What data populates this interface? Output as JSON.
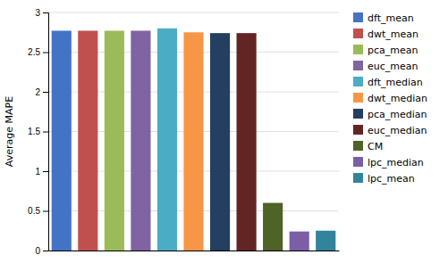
{
  "chart_data": {
    "type": "bar",
    "categories": [
      "dft_mean",
      "dwt_mean",
      "pca_mean",
      "euc_mean",
      "dft_median",
      "dwt_median",
      "pca_median",
      "euc_median",
      "CM",
      "lpc_median",
      "lpc_mean"
    ],
    "values": [
      2.77,
      2.77,
      2.77,
      2.77,
      2.8,
      2.75,
      2.74,
      2.74,
      0.6,
      0.24,
      0.25
    ],
    "colors": [
      "#4472C4",
      "#C0504D",
      "#9BBB59",
      "#8064A2",
      "#4BACC6",
      "#F79646",
      "#243F60",
      "#632523",
      "#4F6228",
      "#7B5EA7",
      "#31849B"
    ],
    "ylabel": "Average MAPE",
    "ylim": [
      0,
      3.0
    ],
    "yticks": [
      0,
      0.5,
      1,
      1.5,
      2,
      2.5,
      3
    ],
    "grid": true,
    "legend": "right",
    "tick_labels": "y"
  }
}
